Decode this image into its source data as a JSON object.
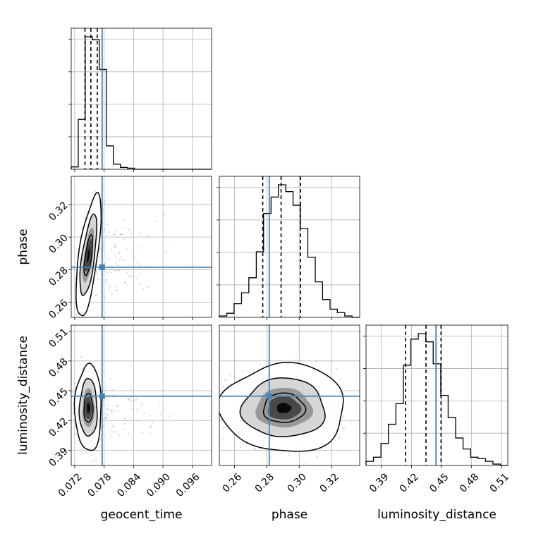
{
  "chart_data": {
    "type": "corner",
    "parameters": [
      "geocent_time",
      "phase",
      "luminosity_distance"
    ],
    "truths": {
      "geocent_time": 0.0776,
      "phase": 0.2815,
      "luminosity_distance": 0.4445
    },
    "ranges": {
      "geocent_time": [
        0.0713,
        0.0999
      ],
      "phase": [
        0.2507,
        0.3373
      ],
      "luminosity_distance": [
        0.3747,
        0.5161
      ]
    },
    "ticks": {
      "geocent_time": [
        "0.072",
        "0.078",
        "0.084",
        "0.090",
        "0.096"
      ],
      "phase": [
        "0.26",
        "0.28",
        "0.30",
        "0.32"
      ],
      "luminosity_distance": [
        "0.39",
        "0.42",
        "0.45",
        "0.48",
        "0.51"
      ]
    },
    "quantiles": {
      "geocent_time": [
        0.0741,
        0.0753,
        0.0766
      ],
      "phase": [
        0.2775,
        0.2888,
        0.3008
      ],
      "luminosity_distance": [
        0.414,
        0.4345,
        0.4495
      ]
    },
    "histograms": {
      "geocent_time": {
        "edges": [
          0.0713,
          0.07273,
          0.07416,
          0.07559,
          0.07702,
          0.07845,
          0.07988,
          0.08131,
          0.08274,
          0.08417,
          0.0856,
          0.0999
        ],
        "counts": [
          0.015,
          0.32,
          0.85,
          0.83,
          0.64,
          0.15,
          0.033,
          0.012,
          0.007,
          0.0,
          0.0
        ]
      },
      "phase": {
        "edges": [
          0.2507,
          0.2553,
          0.2598,
          0.2644,
          0.2689,
          0.2735,
          0.278,
          0.2826,
          0.2871,
          0.2917,
          0.2962,
          0.3008,
          0.3053,
          0.3099,
          0.3144,
          0.319,
          0.3235,
          0.3281,
          0.3326,
          0.3373
        ],
        "counts": [
          0.01,
          0.03,
          0.1,
          0.18,
          0.29,
          0.48,
          0.76,
          0.88,
          0.97,
          0.92,
          0.82,
          0.65,
          0.44,
          0.26,
          0.13,
          0.06,
          0.035,
          0.01,
          0.0
        ]
      },
      "luminosity_distance": {
        "edges": [
          0.3747,
          0.3821,
          0.3896,
          0.397,
          0.4045,
          0.4119,
          0.4194,
          0.4268,
          0.4343,
          0.4417,
          0.4492,
          0.4566,
          0.4641,
          0.4715,
          0.479,
          0.4864,
          0.4939,
          0.5013,
          0.5088,
          0.5161
        ],
        "counts": [
          0.03,
          0.06,
          0.16,
          0.3,
          0.45,
          0.73,
          0.92,
          0.96,
          0.9,
          0.74,
          0.51,
          0.35,
          0.2,
          0.12,
          0.06,
          0.05,
          0.03,
          0.01,
          0.0
        ]
      }
    },
    "joint": {
      "phase_vs_geocent_time": {
        "center": [
          0.0748,
          0.2885
        ],
        "sigma": [
          0.00085,
          0.0125
        ],
        "rho": 0.65,
        "outlier_tail": "right"
      },
      "luminosity_distance_vs_geocent_time": {
        "center": [
          0.0748,
          0.4325
        ],
        "sigma": [
          0.0009,
          0.0145
        ],
        "rho": 0.0,
        "outlier_tail": "right"
      },
      "luminosity_distance_vs_phase": {
        "center": [
          0.2905,
          0.4325
        ],
        "sigma": [
          0.0128,
          0.0148
        ],
        "rho": 0.0
      }
    },
    "contour_levels": [
      0.393,
      0.865,
      0.989
    ],
    "colors": {
      "truth": "#4682b4",
      "hist": "#000000",
      "points": "#888888",
      "grid": "#b0b0b0"
    },
    "grid": true
  }
}
